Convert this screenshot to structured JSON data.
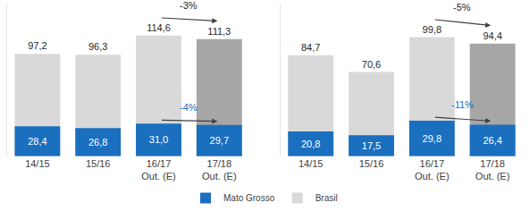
{
  "chart_data": [
    {
      "type": "bar",
      "categories": [
        "14/15",
        "15/16",
        "16/17\nOut. (E)",
        "17/18\nOut. (E)"
      ],
      "series": [
        {
          "name": "Mato Grosso",
          "color": "#1a6fbf",
          "values": [
            28.4,
            26.8,
            31.0,
            29.7
          ],
          "value_labels": [
            "28,4",
            "26,8",
            "31,0",
            "29,7"
          ]
        },
        {
          "name": "Brasil",
          "color": "#d9d9d9",
          "colors": [
            "#d9d9d9",
            "#d9d9d9",
            "#d9d9d9",
            "#a6a6a6"
          ],
          "values": [
            97.2,
            96.3,
            114.6,
            111.3
          ],
          "value_labels": [
            "97,2",
            "96,3",
            "114,6",
            "111,3"
          ]
        }
      ],
      "annotations": [
        {
          "text": "-3%",
          "series": "Brasil",
          "from": "16/17\nOut. (E)",
          "to": "17/18\nOut. (E)"
        },
        {
          "text": "-4%",
          "series": "Mato Grosso",
          "from": "16/17\nOut. (E)",
          "to": "17/18\nOut. (E)"
        }
      ],
      "ylim": [
        0,
        145
      ],
      "yticks": [],
      "tick_labels": "x",
      "stacked": false,
      "data_labels": true,
      "grid": false,
      "legend": "bottom"
    },
    {
      "type": "bar",
      "categories": [
        "14/15",
        "15/16",
        "16/17\nOut. (E)",
        "17/18\nOut. (E)"
      ],
      "series": [
        {
          "name": "Mato Grosso",
          "color": "#1a6fbf",
          "values": [
            20.8,
            17.5,
            29.8,
            26.4
          ],
          "value_labels": [
            "20,8",
            "17,5",
            "29,8",
            "26,4"
          ]
        },
        {
          "name": "Brasil",
          "color": "#d9d9d9",
          "colors": [
            "#d9d9d9",
            "#d9d9d9",
            "#d9d9d9",
            "#a6a6a6"
          ],
          "values": [
            84.7,
            70.6,
            99.8,
            94.4
          ],
          "value_labels": [
            "84,7",
            "70,6",
            "99,8",
            "94,4"
          ]
        }
      ],
      "annotations": [
        {
          "text": "-5%",
          "series": "Brasil",
          "from": "16/17\nOut. (E)",
          "to": "17/18\nOut. (E)"
        },
        {
          "text": "-11%",
          "series": "Mato Grosso",
          "from": "16/17\nOut. (E)",
          "to": "17/18\nOut. (E)"
        }
      ],
      "ylim": [
        0,
        128
      ],
      "yticks": [],
      "tick_labels": "x",
      "stacked": false,
      "data_labels": true,
      "grid": false,
      "legend": "bottom"
    }
  ]
}
